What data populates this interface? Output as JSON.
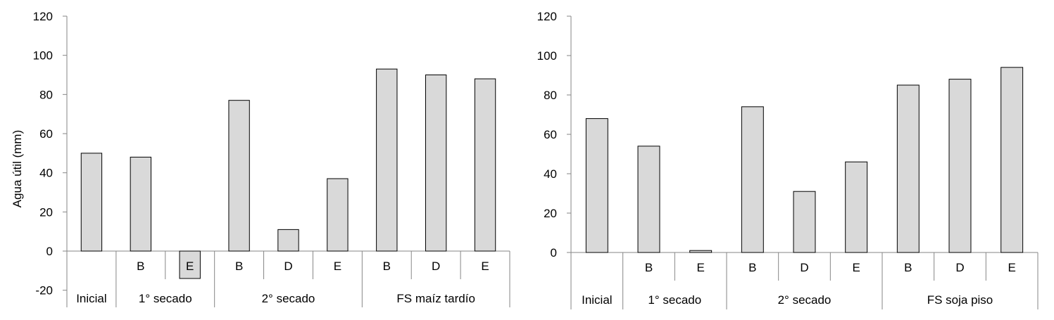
{
  "chart_data": [
    {
      "type": "bar",
      "title": "",
      "xlabel": "",
      "ylabel": "Agua útil (mm)",
      "ylim": [
        -20,
        120
      ],
      "yticks": [
        "-20",
        "0",
        "20",
        "40",
        "60",
        "80",
        "100",
        "120"
      ],
      "grid": false,
      "bar_color": "#d9d9d9",
      "bar_edge_color": "#000000",
      "categories": [
        {
          "sub": "",
          "group": "Inicial",
          "value": 50
        },
        {
          "sub": "B",
          "group": "1° secado",
          "value": 48
        },
        {
          "sub": "E",
          "group": "1° secado",
          "value": -14
        },
        {
          "sub": "B",
          "group": "2° secado",
          "value": 77
        },
        {
          "sub": "D",
          "group": "2° secado",
          "value": 11
        },
        {
          "sub": "E",
          "group": "2° secado",
          "value": 37
        },
        {
          "sub": "B",
          "group": "FS maíz tardío",
          "value": 93
        },
        {
          "sub": "D",
          "group": "FS maíz tardío",
          "value": 90
        },
        {
          "sub": "E",
          "group": "FS maíz tardío",
          "value": 88
        }
      ],
      "groups": [
        "Inicial",
        "1° secado",
        "2° secado",
        "FS maíz tardío"
      ]
    },
    {
      "type": "bar",
      "title": "",
      "xlabel": "",
      "ylabel": "",
      "ylim": [
        0,
        120
      ],
      "yticks": [
        "0",
        "20",
        "40",
        "60",
        "80",
        "100",
        "120"
      ],
      "grid": false,
      "bar_color": "#d9d9d9",
      "bar_edge_color": "#000000",
      "categories": [
        {
          "sub": "",
          "group": "Inicial",
          "value": 68
        },
        {
          "sub": "B",
          "group": "1° secado",
          "value": 54
        },
        {
          "sub": "E",
          "group": "1° secado",
          "value": 1
        },
        {
          "sub": "B",
          "group": "2° secado",
          "value": 74
        },
        {
          "sub": "D",
          "group": "2° secado",
          "value": 31
        },
        {
          "sub": "E",
          "group": "2° secado",
          "value": 46
        },
        {
          "sub": "B",
          "group": "FS soja piso",
          "value": 85
        },
        {
          "sub": "D",
          "group": "FS soja piso",
          "value": 88
        },
        {
          "sub": "E",
          "group": "FS soja piso",
          "value": 94
        }
      ],
      "groups": [
        "Inicial",
        "1° secado",
        "2° secado",
        "FS soja piso"
      ]
    }
  ]
}
